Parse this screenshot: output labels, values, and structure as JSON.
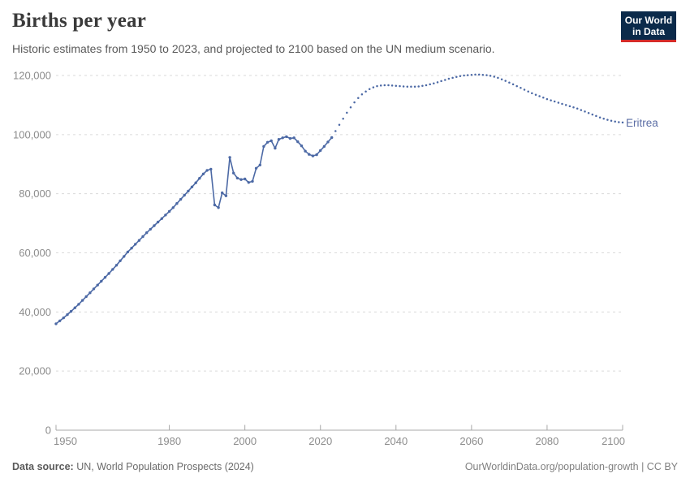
{
  "header": {
    "title": "Births per year",
    "subtitle": "Historic estimates from 1950 to 2023, and projected to 2100 based on the UN medium scenario.",
    "logo": {
      "line1": "Our World",
      "line2": "in Data",
      "bg_color": "#0b2a4a",
      "accent_color": "#d42b28"
    }
  },
  "chart_data": {
    "type": "line",
    "title": "Births per year",
    "entity": "Eritrea",
    "xlabel": "",
    "ylabel": "",
    "xlim": [
      1950,
      2100
    ],
    "ylim": [
      0,
      120000
    ],
    "grid": true,
    "legend_position": "end-of-line",
    "line_color": "#4c69a5",
    "entity_label_color": "#5d6fa6",
    "x_ticks": [
      1950,
      1980,
      2000,
      2020,
      2040,
      2060,
      2080,
      2100
    ],
    "y_ticks": [
      0,
      20000,
      40000,
      60000,
      80000,
      100000,
      120000
    ],
    "y_tick_labels": [
      "0",
      "20,000",
      "40,000",
      "60,000",
      "80,000",
      "100,000",
      "120,000"
    ],
    "series": [
      {
        "name": "historic estimates",
        "style": "solid",
        "x_start": 1950,
        "x_step": 1,
        "values": [
          36000,
          37000,
          38000,
          39100,
          40200,
          41400,
          42600,
          43900,
          45200,
          46500,
          47800,
          49100,
          50400,
          51700,
          53000,
          54400,
          55800,
          57300,
          58800,
          60300,
          61600,
          62900,
          64200,
          65500,
          66800,
          68000,
          69200,
          70400,
          71600,
          72800,
          74000,
          75300,
          76700,
          78100,
          79500,
          80900,
          82300,
          83700,
          85200,
          86700,
          87900,
          88300,
          76200,
          75300,
          80300,
          79300,
          92300,
          87000,
          85300,
          84800,
          85000,
          83800,
          84200,
          88600,
          89700,
          96000,
          97400,
          97900,
          95400,
          98400,
          98900,
          99300,
          98700,
          98900,
          97600,
          96200,
          94400,
          93300,
          92800,
          93200,
          94600,
          96000,
          97500,
          99000
        ]
      },
      {
        "name": "UN medium scenario projection",
        "style": "dotted",
        "x_start": 2024,
        "x_step": 1,
        "values": [
          101200,
          103300,
          105400,
          107400,
          109200,
          110900,
          112400,
          113600,
          114600,
          115400,
          116000,
          116400,
          116600,
          116700,
          116700,
          116600,
          116500,
          116400,
          116300,
          116200,
          116200,
          116200,
          116300,
          116500,
          116700,
          117000,
          117300,
          117700,
          118100,
          118500,
          118900,
          119200,
          119500,
          119800,
          120000,
          120100,
          120200,
          120300,
          120300,
          120200,
          120100,
          119900,
          119600,
          119200,
          118700,
          118200,
          117600,
          117000,
          116400,
          115800,
          115200,
          114600,
          114000,
          113500,
          113000,
          112500,
          112000,
          111600,
          111200,
          110800,
          110400,
          110000,
          109600,
          109200,
          108800,
          108300,
          107800,
          107300,
          106800,
          106300,
          105800,
          105400,
          105000,
          104700,
          104400,
          104200,
          104100
        ]
      }
    ]
  },
  "footer": {
    "source_label": "Data source:",
    "source_text": " UN, World Population Prospects (2024)",
    "right_text": "OurWorldinData.org/population-growth | CC BY"
  }
}
